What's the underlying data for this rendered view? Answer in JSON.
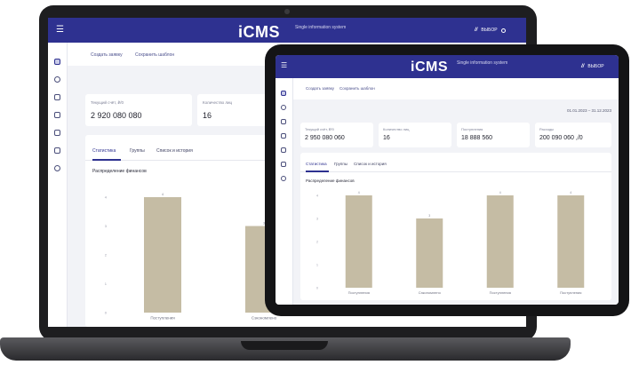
{
  "app": {
    "logo": "iCMS",
    "tagline": "Single information system",
    "user_name": "ВЫБОР",
    "language_icon": "lang-icon"
  },
  "toolbar": {
    "btn_1": "Создать заявку",
    "btn_2": "Сохранить шаблон"
  },
  "laptop": {
    "stats": [
      {
        "label": "Текущий счёт, ₽/0",
        "value": "2 920 080 080"
      },
      {
        "label": "Количество лиц",
        "value": "16"
      }
    ],
    "tabs": [
      "Статистика",
      "Группы",
      "Список и история"
    ],
    "chart_title": "Распределение финансов"
  },
  "tablet": {
    "filter": "01.01.2023 – 31.12.2023",
    "stats": [
      {
        "label": "Текущий счёт, ₽/0",
        "value": "2 950 080 060"
      },
      {
        "label": "Количество лиц",
        "value": "16"
      },
      {
        "label": "Поступления",
        "value": "18 888 560"
      },
      {
        "label": "Расходы",
        "value": "200 090 060 ,/0"
      }
    ],
    "tabs": [
      "Статистика",
      "Группы",
      "Список и история"
    ],
    "chart_title": "Распределение финансов"
  },
  "colors": {
    "header": "#2e3190",
    "bar": "#c5bca4",
    "background": "#f2f3f7"
  },
  "chart_data": [
    {
      "type": "bar",
      "title": "Распределение финансов",
      "categories": [
        "Поступления",
        "Сэкономлено",
        "",
        ""
      ],
      "values": [
        4,
        3,
        null,
        null
      ],
      "ylim": [
        0,
        4
      ],
      "yticks": [
        "4",
        "3",
        "2",
        "1",
        "0"
      ]
    },
    {
      "type": "bar",
      "title": "Распределение финансов",
      "categories": [
        "Поступления",
        "Сэкономлено",
        "Поступления",
        "Поступления"
      ],
      "values": [
        4,
        3,
        4,
        4
      ],
      "ylim": [
        0,
        4
      ],
      "yticks": [
        "4",
        "3",
        "2",
        "1",
        "0"
      ]
    }
  ]
}
